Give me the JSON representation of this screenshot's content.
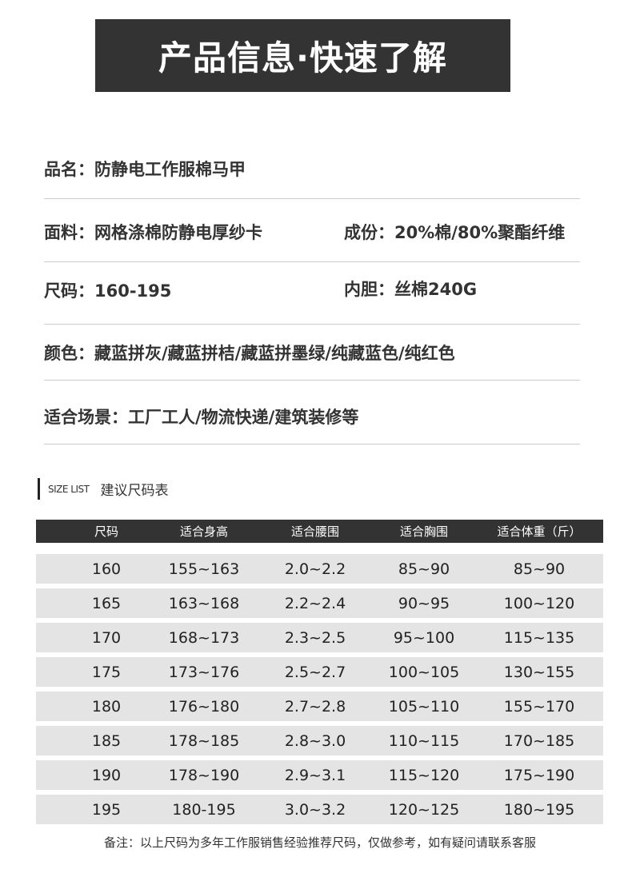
{
  "title": "产品信息·快速了解",
  "info": {
    "name": "品名：防静电工作服棉马甲",
    "fabric": "面料：网格涤棉防静电厚纱卡",
    "composition": "成份：20%棉/80%聚酯纤维",
    "size": "尺码：160-195",
    "lining": "内胆：丝棉240G",
    "colors": "颜色：藏蓝拼灰/藏蓝拼桔/藏蓝拼墨绿/纯藏蓝色/纯红色",
    "scenes": "适合场景：工厂工人/物流快递/建筑装修等"
  },
  "size_section": {
    "en": "SIZE LIST",
    "cn": "建议尺码表"
  },
  "table": {
    "headers": [
      "尺码",
      "适合身高",
      "适合腰围",
      "适合胸围",
      "适合体重（斤）"
    ],
    "rows": [
      [
        "160",
        "155~163",
        "2.0~2.2",
        "85~90",
        "85~90"
      ],
      [
        "165",
        "163~168",
        "2.2~2.4",
        "90~95",
        "100~120"
      ],
      [
        "170",
        "168~173",
        "2.3~2.5",
        "95~100",
        "115~135"
      ],
      [
        "175",
        "173~176",
        "2.5~2.7",
        "100~105",
        "130~155"
      ],
      [
        "180",
        "176~180",
        "2.7~2.8",
        "105~110",
        "155~170"
      ],
      [
        "185",
        "178~185",
        "2.8~3.0",
        "110~115",
        "170~185"
      ],
      [
        "190",
        "178~190",
        "2.9~3.1",
        "115~120",
        "175~190"
      ],
      [
        "195",
        "180-195",
        "3.0~3.2",
        "120~125",
        "180~195"
      ]
    ]
  },
  "note": "备注：以上尺码为多年工作服销售经验推荐尺码，仅做参考，如有疑问请联系客服"
}
